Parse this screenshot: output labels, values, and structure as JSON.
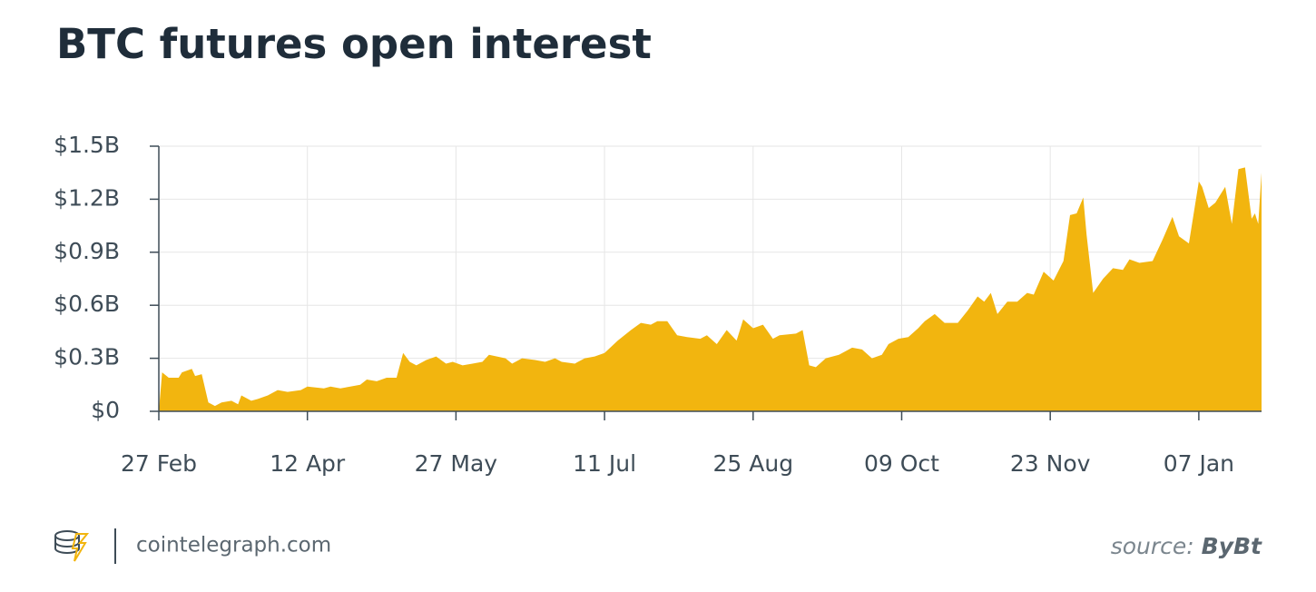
{
  "chart_data": {
    "type": "area",
    "title": "BTC futures open interest",
    "x": [
      0,
      1,
      3,
      6,
      7,
      10,
      11,
      13,
      15,
      17,
      19,
      22,
      24,
      25,
      28,
      30,
      33,
      36,
      39,
      43,
      45,
      50,
      52,
      55,
      58,
      61,
      63,
      66,
      69,
      72,
      74,
      76,
      78,
      81,
      84,
      87,
      89,
      92,
      95,
      98,
      100,
      105,
      107,
      110,
      114,
      117,
      120,
      122,
      126,
      129,
      132,
      135,
      139,
      143,
      146,
      149,
      151,
      154,
      157,
      160,
      164,
      166,
      169,
      172,
      175,
      177,
      180,
      183,
      186,
      188,
      193,
      195,
      197,
      199,
      202,
      206,
      210,
      213,
      216,
      219,
      221,
      224,
      227,
      230,
      232,
      235,
      238,
      242,
      245,
      248,
      250,
      252,
      254,
      257,
      260,
      263,
      265,
      268,
      271,
      274,
      276,
      278,
      280,
      281,
      283,
      286,
      289,
      292,
      294,
      297,
      301,
      304,
      307,
      309,
      312,
      315,
      316,
      318,
      320,
      323,
      325,
      327,
      329,
      331,
      332,
      333,
      334
    ],
    "series": [
      {
        "name": "BTC futures open interest",
        "color": "#f2b50f",
        "values": [
          0,
          0.22,
          0.19,
          0.19,
          0.22,
          0.24,
          0.2,
          0.21,
          0.05,
          0.03,
          0.05,
          0.06,
          0.04,
          0.09,
          0.06,
          0.07,
          0.09,
          0.12,
          0.11,
          0.12,
          0.14,
          0.13,
          0.14,
          0.13,
          0.14,
          0.15,
          0.18,
          0.17,
          0.19,
          0.19,
          0.33,
          0.28,
          0.26,
          0.29,
          0.31,
          0.27,
          0.28,
          0.26,
          0.27,
          0.28,
          0.32,
          0.3,
          0.27,
          0.3,
          0.29,
          0.28,
          0.3,
          0.28,
          0.27,
          0.3,
          0.31,
          0.33,
          0.4,
          0.46,
          0.5,
          0.49,
          0.51,
          0.51,
          0.43,
          0.42,
          0.41,
          0.43,
          0.38,
          0.46,
          0.4,
          0.52,
          0.47,
          0.49,
          0.41,
          0.43,
          0.44,
          0.46,
          0.26,
          0.25,
          0.3,
          0.32,
          0.36,
          0.35,
          0.3,
          0.32,
          0.38,
          0.41,
          0.42,
          0.47,
          0.51,
          0.55,
          0.5,
          0.5,
          0.57,
          0.65,
          0.62,
          0.67,
          0.55,
          0.62,
          0.62,
          0.67,
          0.66,
          0.79,
          0.74,
          0.85,
          1.11,
          1.12,
          1.21,
          1.0,
          0.67,
          0.75,
          0.81,
          0.8,
          0.86,
          0.84,
          0.85,
          0.97,
          1.1,
          0.99,
          0.95,
          1.3,
          1.27,
          1.15,
          1.18,
          1.27,
          1.06,
          1.37,
          1.38,
          1.09,
          1.12,
          1.06,
          1.35
        ]
      }
    ],
    "xlim": [
      0,
      334
    ],
    "xticks": [
      {
        "value": 0,
        "label": "27 Feb"
      },
      {
        "value": 45,
        "label": "12 Apr"
      },
      {
        "value": 90,
        "label": "27 May"
      },
      {
        "value": 135,
        "label": "11 Jul"
      },
      {
        "value": 180,
        "label": "25 Aug"
      },
      {
        "value": 225,
        "label": "09 Oct"
      },
      {
        "value": 270,
        "label": "23 Nov"
      },
      {
        "value": 315,
        "label": "07 Jan"
      }
    ],
    "ylim": [
      0,
      1.5
    ],
    "yticks": [
      {
        "value": 0,
        "label": "$0"
      },
      {
        "value": 0.3,
        "label": "$0.3B"
      },
      {
        "value": 0.6,
        "label": "$0.6B"
      },
      {
        "value": 0.9,
        "label": "$0.9B"
      },
      {
        "value": 1.2,
        "label": "$1.2B"
      },
      {
        "value": 1.5,
        "label": "$1.5B"
      }
    ],
    "grid": true
  },
  "footer": {
    "site": "cointelegraph.com",
    "source_label": "source:",
    "source_name": "ByBt"
  }
}
